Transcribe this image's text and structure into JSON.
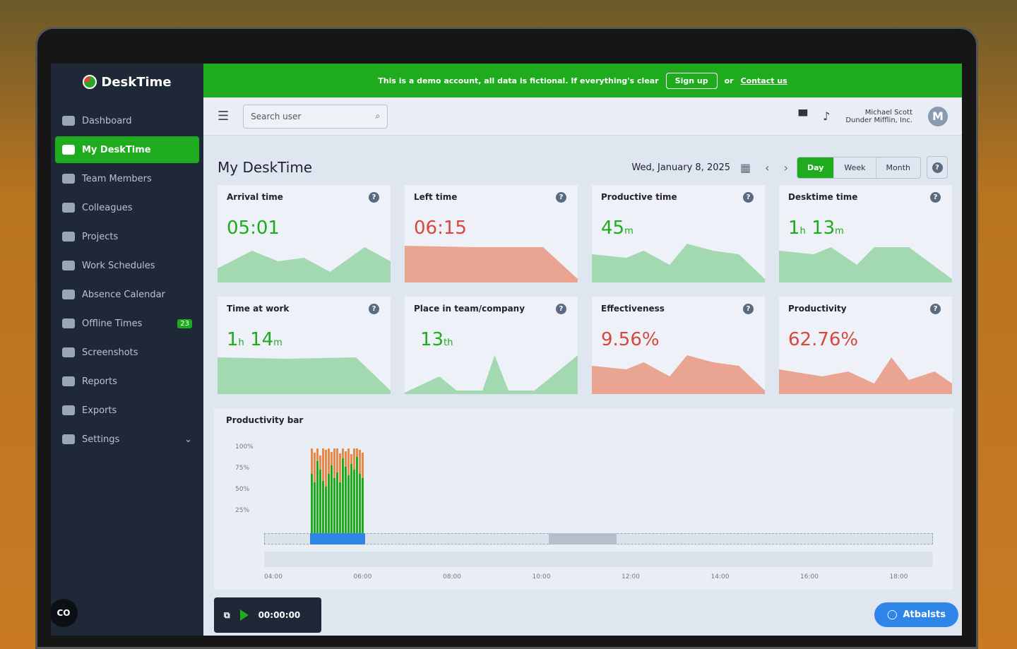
{
  "app": {
    "name": "DeskTime"
  },
  "sidebar": {
    "items": [
      {
        "label": "Dashboard"
      },
      {
        "label": "My DeskTime",
        "active": true
      },
      {
        "label": "Team Members"
      },
      {
        "label": "Colleagues"
      },
      {
        "label": "Projects"
      },
      {
        "label": "Work Schedules"
      },
      {
        "label": "Absence Calendar"
      },
      {
        "label": "Offline Times",
        "badge": "23"
      },
      {
        "label": "Screenshots"
      },
      {
        "label": "Reports"
      },
      {
        "label": "Exports"
      },
      {
        "label": "Settings"
      }
    ],
    "footer_logo": "CO"
  },
  "banner": {
    "text": "This is a demo account, all data is fictional. If everything's clear",
    "signup": "Sign up",
    "or": "or",
    "contact": "Contact us"
  },
  "topbar": {
    "search_placeholder": "Search user",
    "user_name": "Michael Scott",
    "company": "Dunder Mifflin, Inc.",
    "avatar": "M"
  },
  "page": {
    "title": "My DeskTime",
    "date": "Wed, January 8, 2025",
    "views": [
      "Day",
      "Week",
      "Month"
    ],
    "active_view": "Day"
  },
  "cards": [
    {
      "title": "Arrival time",
      "value": "05:01"
    },
    {
      "title": "Left time",
      "value": "06:15"
    },
    {
      "title": "Productive time",
      "value": "45",
      "unit": "m"
    },
    {
      "title": "Desktime time",
      "h": "1",
      "m": "13"
    },
    {
      "title": "Time at work",
      "h": "1",
      "m": "14"
    },
    {
      "title": "Place in team/company",
      "value": "13",
      "unit": "th"
    },
    {
      "title": "Effectiveness",
      "value": "9.56%"
    },
    {
      "title": "Productivity",
      "value": "62.76%"
    }
  ],
  "productivity_bar": {
    "title": "Productivity bar",
    "y_ticks": [
      "100%",
      "75%",
      "50%",
      "25%"
    ],
    "x_ticks": [
      "04:00",
      "06:00",
      "08:00",
      "10:00",
      "12:00",
      "14:00",
      "16:00",
      "18:00"
    ],
    "green_pct": [
      70,
      60,
      85,
      75,
      62,
      55,
      70,
      80,
      65,
      72,
      60,
      88,
      78,
      68,
      82,
      75,
      90,
      70,
      65
    ],
    "orange_pct": [
      100,
      95,
      100,
      92,
      100,
      98,
      100,
      96,
      100,
      100,
      94,
      100,
      97,
      100,
      93,
      100,
      100,
      98,
      95
    ]
  },
  "timer": {
    "value": "00:00:00"
  },
  "help": {
    "label": "Atbalsts"
  },
  "colors": {
    "green": "#1eab1e",
    "red": "#d9453f",
    "sidebar": "#1e2836",
    "blue": "#2f86e8"
  }
}
